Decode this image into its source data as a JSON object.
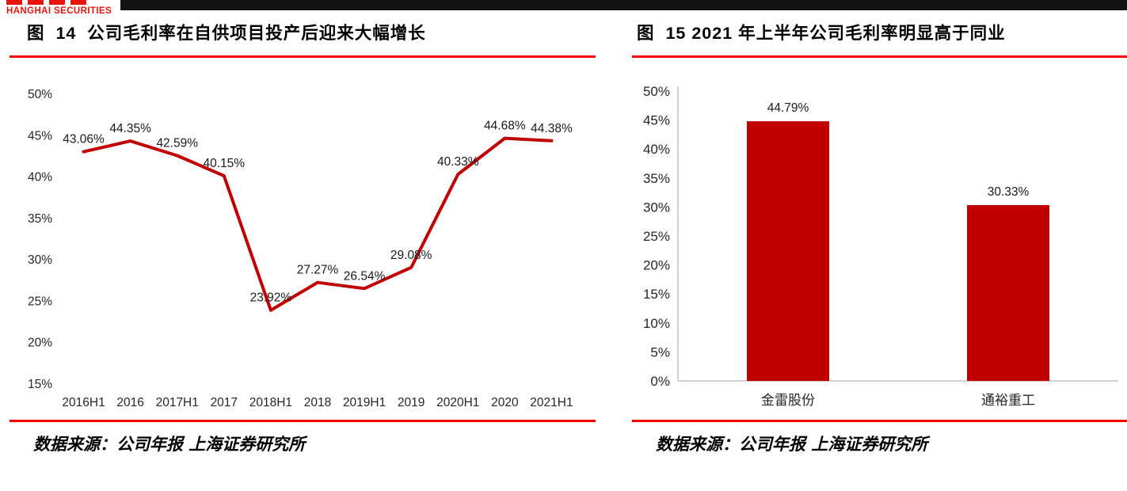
{
  "header": {
    "logo_text": "HANGHAI SECURITIES",
    "logo_color": "#e8140c",
    "topbar_color": "#121212"
  },
  "panels": {
    "left": {
      "source": "数据来源：公司年报 上海证券研究所"
    },
    "right": {
      "source": "数据来源：公司年报 上海证券研究所"
    }
  },
  "colors": {
    "accent_red": "#c00000",
    "rule_red": "#f40000",
    "axis_gray": "#c0c0c0"
  },
  "chart_data": [
    {
      "type": "line",
      "title": "图  14  公司毛利率在自供项目投产后迎来大幅增长",
      "categories": [
        "2016H1",
        "2016",
        "2017H1",
        "2017",
        "2018H1",
        "2018",
        "2019H1",
        "2019",
        "2020H1",
        "2020",
        "2021H1"
      ],
      "values": [
        43.06,
        44.35,
        42.59,
        40.15,
        23.92,
        27.27,
        26.54,
        29.08,
        40.33,
        44.68,
        44.38
      ],
      "point_labels": [
        "43.06%",
        "44.35%",
        "42.59%",
        "40.15%",
        "23.92%",
        "27.27%",
        "26.54%",
        "29.08%",
        "40.33%",
        "44.68%",
        "44.38%"
      ],
      "ylim": [
        15,
        50
      ],
      "ytick_step": 5,
      "ytick_labels": [
        "15%",
        "20%",
        "25%",
        "30%",
        "35%",
        "40%",
        "45%",
        "50%"
      ],
      "line_color": "#c00000",
      "grid": false,
      "legend": "none",
      "xlabel": "",
      "ylabel": ""
    },
    {
      "type": "bar",
      "title": "图  15 2021 年上半年公司毛利率明显高于同业",
      "categories": [
        "金雷股份",
        "通裕重工"
      ],
      "values": [
        44.79,
        30.33
      ],
      "point_labels": [
        "44.79%",
        "30.33%"
      ],
      "ylim": [
        0,
        50
      ],
      "ytick_step": 5,
      "ytick_labels": [
        "0%",
        "5%",
        "10%",
        "15%",
        "20%",
        "25%",
        "30%",
        "35%",
        "40%",
        "45%",
        "50%"
      ],
      "bar_color": "#c00000",
      "grid": false,
      "legend": "none",
      "xlabel": "",
      "ylabel": ""
    }
  ]
}
